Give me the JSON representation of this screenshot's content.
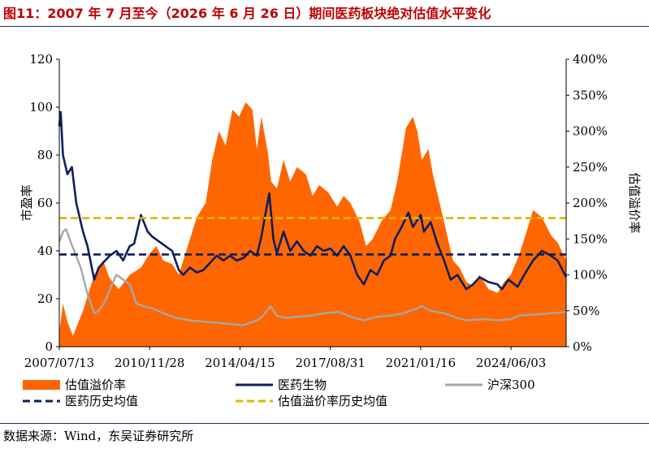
{
  "header": {
    "title": "图11：2007 年 7 月至今（2026 年 6 月 26 日）期间医药板块绝对估值水平变化"
  },
  "footer": {
    "source": "数据来源：Wind，东吴证券研究所"
  },
  "chart_data": {
    "type": "line",
    "title": "",
    "x_ticks": [
      "2007/07/13",
      "2010/11/28",
      "2014/04/15",
      "2017/08/31",
      "2021/01/16",
      "2024/06/03"
    ],
    "x_range": [
      "2007/07/13",
      "2026/06/26"
    ],
    "y_left": {
      "label": "市盈率",
      "range": [
        0,
        120
      ],
      "ticks": [
        "0",
        "20",
        "40",
        "60",
        "80",
        "100",
        "120"
      ]
    },
    "y_right": {
      "label": "估值溢价率",
      "range": [
        0,
        400
      ],
      "unit": "%",
      "ticks": [
        "0%",
        "50%",
        "100%",
        "150%",
        "200%",
        "250%",
        "300%",
        "350%",
        "400%"
      ]
    },
    "legend": {
      "placement": "bottom",
      "items": [
        {
          "label": "估值溢价率",
          "style": "area",
          "color": "#ff6600"
        },
        {
          "label": "医药生物",
          "style": "line",
          "color": "#0d1f5c"
        },
        {
          "label": "沪深300",
          "style": "line",
          "color": "#a6a6a6"
        },
        {
          "label": "医药历史均值",
          "style": "dashed",
          "color": "#0d1f5c"
        },
        {
          "label": "估值溢价率历史均值",
          "style": "dashed",
          "color": "#d9b800"
        }
      ]
    },
    "series": [
      {
        "name": "估值溢价率",
        "axis": "right",
        "style": "area",
        "color": "#ff6600",
        "points": [
          [
            "2007/07/13",
            20
          ],
          [
            "2007/09/01",
            60
          ],
          [
            "2007/11/01",
            35
          ],
          [
            "2008/01/15",
            15
          ],
          [
            "2008/06/01",
            50
          ],
          [
            "2008/11/01",
            100
          ],
          [
            "2009/03/01",
            120
          ],
          [
            "2009/06/01",
            95
          ],
          [
            "2009/10/01",
            80
          ],
          [
            "2010/03/01",
            100
          ],
          [
            "2010/08/01",
            110
          ],
          [
            "2010/12/01",
            130
          ],
          [
            "2011/03/01",
            140
          ],
          [
            "2011/06/01",
            120
          ],
          [
            "2011/10/01",
            115
          ],
          [
            "2012/01/01",
            100
          ],
          [
            "2012/05/01",
            140
          ],
          [
            "2012/09/01",
            180
          ],
          [
            "2013/01/01",
            200
          ],
          [
            "2013/04/01",
            260
          ],
          [
            "2013/07/01",
            300
          ],
          [
            "2013/10/01",
            280
          ],
          [
            "2014/01/01",
            330
          ],
          [
            "2014/04/01",
            320
          ],
          [
            "2014/07/01",
            340
          ],
          [
            "2014/10/01",
            330
          ],
          [
            "2014/12/01",
            275
          ],
          [
            "2015/02/01",
            320
          ],
          [
            "2015/05/01",
            270
          ],
          [
            "2015/06/15",
            230
          ],
          [
            "2015/09/01",
            220
          ],
          [
            "2015/12/01",
            260
          ],
          [
            "2016/03/01",
            230
          ],
          [
            "2016/06/01",
            250
          ],
          [
            "2016/10/01",
            240
          ],
          [
            "2017/01/01",
            210
          ],
          [
            "2017/04/01",
            225
          ],
          [
            "2017/08/01",
            215
          ],
          [
            "2017/12/01",
            195
          ],
          [
            "2018/03/01",
            210
          ],
          [
            "2018/06/01",
            200
          ],
          [
            "2018/10/01",
            175
          ],
          [
            "2019/01/01",
            140
          ],
          [
            "2019/04/01",
            150
          ],
          [
            "2019/08/01",
            175
          ],
          [
            "2019/12/01",
            190
          ],
          [
            "2020/03/01",
            230
          ],
          [
            "2020/07/01",
            305
          ],
          [
            "2020/10/01",
            320
          ],
          [
            "2020/12/01",
            300
          ],
          [
            "2021/02/01",
            260
          ],
          [
            "2021/05/01",
            275
          ],
          [
            "2021/07/01",
            240
          ],
          [
            "2021/10/01",
            200
          ],
          [
            "2022/01/01",
            160
          ],
          [
            "2022/04/01",
            120
          ],
          [
            "2022/07/01",
            110
          ],
          [
            "2022/10/01",
            90
          ],
          [
            "2023/01/01",
            85
          ],
          [
            "2023/04/01",
            100
          ],
          [
            "2023/08/01",
            80
          ],
          [
            "2023/12/01",
            75
          ],
          [
            "2024/03/01",
            90
          ],
          [
            "2024/06/01",
            100
          ],
          [
            "2024/10/01",
            130
          ],
          [
            "2025/01/01",
            160
          ],
          [
            "2025/04/01",
            190
          ],
          [
            "2025/08/01",
            180
          ],
          [
            "2025/12/01",
            155
          ],
          [
            "2026/03/01",
            145
          ],
          [
            "2026/06/26",
            120
          ]
        ]
      },
      {
        "name": "医药生物",
        "axis": "left",
        "style": "line",
        "color": "#0d1f5c",
        "points": [
          [
            "2007/07/13",
            92
          ],
          [
            "2007/08/01",
            98
          ],
          [
            "2007/09/01",
            80
          ],
          [
            "2007/11/01",
            72
          ],
          [
            "2008/01/01",
            75
          ],
          [
            "2008/03/01",
            60
          ],
          [
            "2008/06/01",
            48
          ],
          [
            "2008/08/01",
            42
          ],
          [
            "2008/11/01",
            28
          ],
          [
            "2009/01/01",
            33
          ],
          [
            "2009/03/01",
            35
          ],
          [
            "2009/06/01",
            38
          ],
          [
            "2009/09/01",
            40
          ],
          [
            "2009/12/01",
            36
          ],
          [
            "2010/03/01",
            42
          ],
          [
            "2010/05/01",
            43
          ],
          [
            "2010/08/01",
            55
          ],
          [
            "2010/11/01",
            48
          ],
          [
            "2011/01/01",
            46
          ],
          [
            "2011/04/01",
            44
          ],
          [
            "2011/07/01",
            42
          ],
          [
            "2011/10/01",
            40
          ],
          [
            "2012/01/01",
            32
          ],
          [
            "2012/03/01",
            30
          ],
          [
            "2012/06/01",
            33
          ],
          [
            "2012/09/01",
            31
          ],
          [
            "2012/12/01",
            32
          ],
          [
            "2013/03/01",
            35
          ],
          [
            "2013/06/01",
            38
          ],
          [
            "2013/09/01",
            36
          ],
          [
            "2013/12/01",
            38
          ],
          [
            "2014/03/01",
            36
          ],
          [
            "2014/06/01",
            37
          ],
          [
            "2014/09/01",
            40
          ],
          [
            "2014/12/01",
            38
          ],
          [
            "2015/02/01",
            46
          ],
          [
            "2015/04/01",
            56
          ],
          [
            "2015/05/20",
            64
          ],
          [
            "2015/07/15",
            45
          ],
          [
            "2015/09/01",
            39
          ],
          [
            "2015/12/01",
            48
          ],
          [
            "2016/03/01",
            40
          ],
          [
            "2016/06/01",
            44
          ],
          [
            "2016/09/01",
            40
          ],
          [
            "2016/12/01",
            38
          ],
          [
            "2017/03/01",
            42
          ],
          [
            "2017/06/01",
            40
          ],
          [
            "2017/09/01",
            41
          ],
          [
            "2017/12/01",
            38
          ],
          [
            "2018/03/01",
            42
          ],
          [
            "2018/06/01",
            38
          ],
          [
            "2018/09/01",
            30
          ],
          [
            "2018/12/01",
            26
          ],
          [
            "2019/03/01",
            32
          ],
          [
            "2019/06/01",
            30
          ],
          [
            "2019/09/01",
            36
          ],
          [
            "2019/12/01",
            38
          ],
          [
            "2020/02/01",
            45
          ],
          [
            "2020/05/01",
            50
          ],
          [
            "2020/08/01",
            56
          ],
          [
            "2020/10/01",
            50
          ],
          [
            "2021/01/16",
            55
          ],
          [
            "2021/03/01",
            48
          ],
          [
            "2021/06/01",
            52
          ],
          [
            "2021/09/01",
            43
          ],
          [
            "2021/12/01",
            36
          ],
          [
            "2022/03/01",
            28
          ],
          [
            "2022/06/01",
            30
          ],
          [
            "2022/10/01",
            24
          ],
          [
            "2023/01/01",
            26
          ],
          [
            "2023/04/01",
            29
          ],
          [
            "2023/08/01",
            27
          ],
          [
            "2023/12/01",
            26
          ],
          [
            "2024/02/01",
            24
          ],
          [
            "2024/05/01",
            28
          ],
          [
            "2024/09/01",
            25
          ],
          [
            "2024/12/01",
            30
          ],
          [
            "2025/04/01",
            36
          ],
          [
            "2025/08/01",
            40
          ],
          [
            "2025/12/01",
            38
          ],
          [
            "2026/03/01",
            36
          ],
          [
            "2026/06/26",
            29
          ]
        ]
      },
      {
        "name": "沪深300",
        "axis": "left",
        "style": "line",
        "color": "#a6a6a6",
        "points": [
          [
            "2007/07/13",
            44
          ],
          [
            "2007/09/01",
            48
          ],
          [
            "2007/10/15",
            49
          ],
          [
            "2007/12/01",
            45
          ],
          [
            "2008/02/01",
            40
          ],
          [
            "2008/05/01",
            33
          ],
          [
            "2008/08/01",
            22
          ],
          [
            "2008/11/01",
            14
          ],
          [
            "2009/01/01",
            15
          ],
          [
            "2009/04/01",
            19
          ],
          [
            "2009/07/01",
            26
          ],
          [
            "2009/09/01",
            30
          ],
          [
            "2009/12/01",
            28
          ],
          [
            "2010/03/01",
            26
          ],
          [
            "2010/06/01",
            18
          ],
          [
            "2010/09/01",
            17
          ],
          [
            "2011/01/01",
            16
          ],
          [
            "2011/06/01",
            14
          ],
          [
            "2011/12/01",
            12
          ],
          [
            "2012/06/01",
            11
          ],
          [
            "2012/12/01",
            10.5
          ],
          [
            "2013/06/01",
            10
          ],
          [
            "2013/12/01",
            9.5
          ],
          [
            "2014/06/01",
            9
          ],
          [
            "2014/12/01",
            11
          ],
          [
            "2015/03/01",
            13
          ],
          [
            "2015/06/01",
            17
          ],
          [
            "2015/09/01",
            13
          ],
          [
            "2016/01/01",
            12
          ],
          [
            "2016/06/01",
            12.5
          ],
          [
            "2017/01/01",
            13
          ],
          [
            "2017/06/01",
            14
          ],
          [
            "2018/01/01",
            14.5
          ],
          [
            "2018/06/01",
            12.5
          ],
          [
            "2018/12/01",
            11
          ],
          [
            "2019/06/01",
            12.5
          ],
          [
            "2019/12/01",
            13
          ],
          [
            "2020/06/01",
            14
          ],
          [
            "2020/12/01",
            16
          ],
          [
            "2021/02/01",
            17
          ],
          [
            "2021/06/01",
            15
          ],
          [
            "2021/12/01",
            14
          ],
          [
            "2022/06/01",
            12
          ],
          [
            "2022/10/01",
            11
          ],
          [
            "2023/06/01",
            11.5
          ],
          [
            "2023/12/01",
            11
          ],
          [
            "2024/06/01",
            11.5
          ],
          [
            "2024/10/01",
            13
          ],
          [
            "2025/06/01",
            13.5
          ],
          [
            "2026/06/26",
            14.5
          ]
        ]
      },
      {
        "name": "医药历史均值",
        "axis": "left",
        "style": "dashed",
        "color": "#0d1f5c",
        "value": 38.5
      },
      {
        "name": "估值溢价率历史均值",
        "axis": "right",
        "style": "dashed",
        "color": "#d9b800",
        "value": 179
      }
    ]
  }
}
